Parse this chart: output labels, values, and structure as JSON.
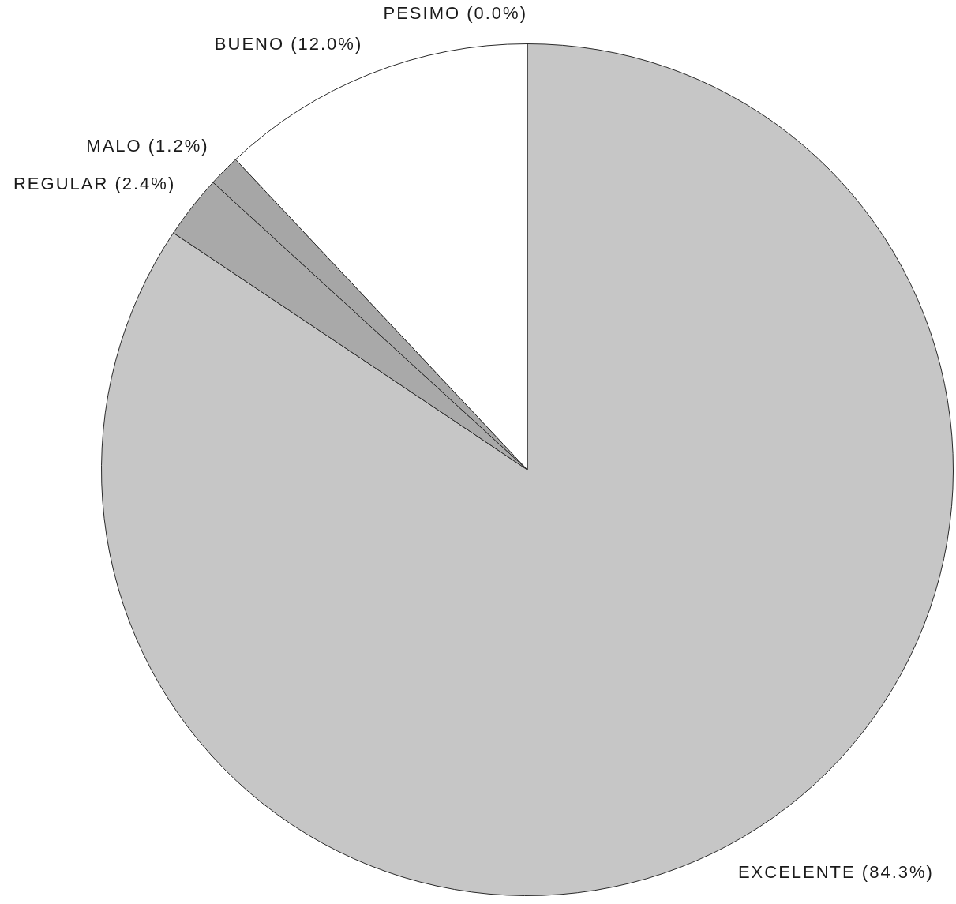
{
  "chart_data": {
    "type": "pie",
    "categories": [
      "EXCELENTE",
      "REGULAR",
      "MALO",
      "BUENO",
      "PESIMO"
    ],
    "values": [
      84.3,
      2.4,
      1.2,
      12.0,
      0.0
    ],
    "colors": [
      "#c6c6c6",
      "#a9a9a9",
      "#a6a6a6",
      "#ffffff",
      "#8c8c8c"
    ],
    "value_labels": [
      "(84.3%)",
      "(2.4%)",
      "(1.2%)",
      "(12.0%)",
      "(0.0%)"
    ],
    "legend": false
  }
}
